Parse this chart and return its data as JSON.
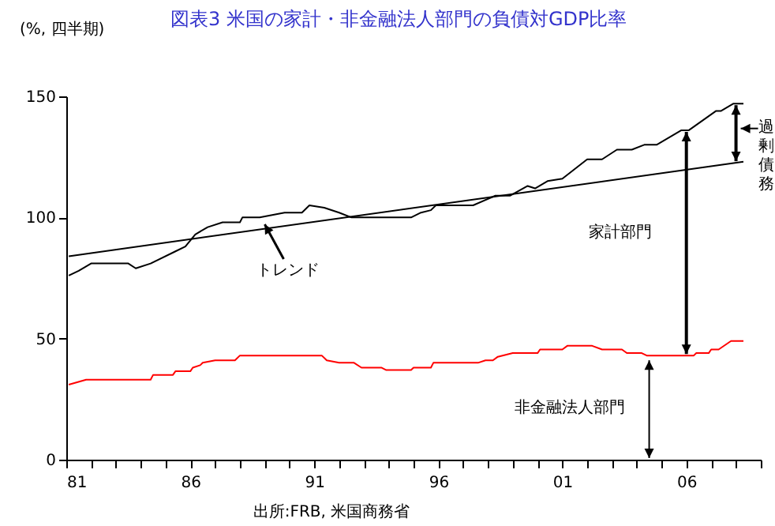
{
  "chart_data": {
    "type": "line",
    "title": "図表3 米国の家計・非金融法人部門の負債対GDP比率",
    "ylabel": "(%, 四半期)",
    "xlim": [
      1981,
      2009
    ],
    "xticks": [
      {
        "value": 1981,
        "label": "81"
      },
      {
        "value": 1982,
        "label": null
      },
      {
        "value": 1983,
        "label": null
      },
      {
        "value": 1984,
        "label": null
      },
      {
        "value": 1985,
        "label": null
      },
      {
        "value": 1986,
        "label": "86"
      },
      {
        "value": 1987,
        "label": null
      },
      {
        "value": 1988,
        "label": null
      },
      {
        "value": 1989,
        "label": null
      },
      {
        "value": 1990,
        "label": null
      },
      {
        "value": 1991,
        "label": "91"
      },
      {
        "value": 1992,
        "label": null
      },
      {
        "value": 1993,
        "label": null
      },
      {
        "value": 1994,
        "label": null
      },
      {
        "value": 1995,
        "label": null
      },
      {
        "value": 1996,
        "label": "96"
      },
      {
        "value": 1997,
        "label": null
      },
      {
        "value": 1998,
        "label": null
      },
      {
        "value": 1999,
        "label": null
      },
      {
        "value": 2000,
        "label": null
      },
      {
        "value": 2001,
        "label": "01"
      },
      {
        "value": 2002,
        "label": null
      },
      {
        "value": 2003,
        "label": null
      },
      {
        "value": 2004,
        "label": null
      },
      {
        "value": 2005,
        "label": null
      },
      {
        "value": 2006,
        "label": "06"
      },
      {
        "value": 2007,
        "label": null
      },
      {
        "value": 2008,
        "label": null
      },
      {
        "value": 2009,
        "label": null
      }
    ],
    "ylim": [
      0,
      150
    ],
    "yticks": [
      0,
      50,
      100,
      150
    ],
    "series": [
      {
        "color": "#000000",
        "x": [
          1981.1,
          1981.5,
          1982.0,
          1983.5,
          1983.8,
          1984.4,
          1985.4,
          1985.8,
          1986.2,
          1986.7,
          1987.3,
          1988.0,
          1988.1,
          1988.8,
          1989.8,
          1990.5,
          1990.8,
          1991.4,
          1992.0,
          1992.5,
          1994.9,
          1995.3,
          1995.7,
          1995.9,
          1997.4,
          1998.3,
          1998.9,
          1999.6,
          1999.9,
          2000.4,
          2001.0,
          2002.0,
          2002.6,
          2003.2,
          2003.8,
          2004.3,
          2004.8,
          2005.8,
          2006.1,
          2007.2,
          2007.4,
          2007.9,
          2008.3
        ],
        "values": [
          76,
          78,
          81,
          81,
          79,
          81,
          86,
          88,
          93,
          96,
          98,
          98,
          100,
          100,
          102,
          102,
          105,
          104,
          102,
          100,
          100,
          102,
          103,
          105,
          105,
          109,
          109,
          113,
          112,
          115,
          116,
          124,
          124,
          128,
          128,
          130,
          130,
          136,
          136,
          144,
          144,
          147,
          147
        ]
      },
      {
        "color": "#000000",
        "x": [
          1981.1,
          2008.3
        ],
        "values": [
          84,
          123
        ]
      },
      {
        "color": "#ff0000",
        "x": [
          1981.1,
          1981.8,
          1982.2,
          1984.4,
          1984.5,
          1985.3,
          1985.4,
          1986.0,
          1986.1,
          1986.4,
          1986.5,
          1987.0,
          1987.8,
          1988.0,
          1991.3,
          1991.5,
          1992.0,
          1992.6,
          1992.9,
          1993.7,
          1993.9,
          1994.9,
          1995.0,
          1995.7,
          1995.8,
          1997.6,
          1997.9,
          1998.2,
          1998.4,
          1999.0,
          2000.0,
          2000.1,
          2001.0,
          2001.2,
          2002.2,
          2002.6,
          2003.4,
          2003.6,
          2004.2,
          2004.4,
          2006.3,
          2006.4,
          2006.9,
          2007.0,
          2007.3,
          2007.8,
          2008.3
        ],
        "values": [
          31,
          33,
          33,
          33,
          35,
          35,
          36.5,
          36.5,
          38,
          39,
          40,
          41,
          41,
          43,
          43,
          41,
          40,
          40,
          38,
          38,
          37,
          37,
          38,
          38,
          40,
          40,
          41,
          41,
          42.5,
          44,
          44,
          45.5,
          45.5,
          47,
          47,
          45.5,
          45.5,
          44,
          44,
          43,
          43,
          44,
          44,
          45.5,
          45.5,
          49,
          49
        ]
      }
    ],
    "annotations": [
      {
        "text": "トレンド",
        "x": 1989,
        "y": 98.5
      },
      "家計部門",
      "非金融法人部門",
      {
        "text": "過剰債務",
        "x": 2008,
        "y": 147
      },
      "出所:FRB, 米国商務省"
    ]
  }
}
